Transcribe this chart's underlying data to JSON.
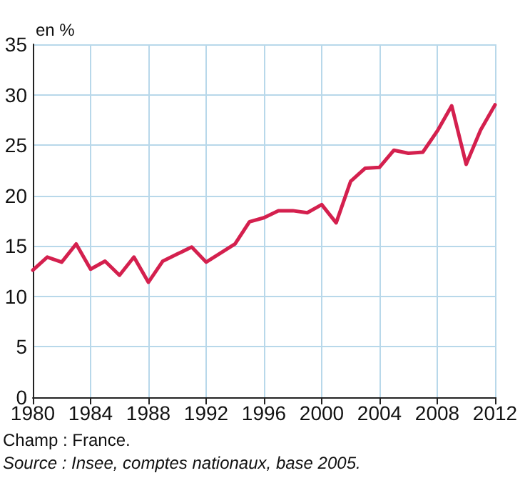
{
  "chart_data": {
    "type": "line",
    "ylabel": "en %",
    "x": [
      1980,
      1981,
      1982,
      1983,
      1984,
      1985,
      1986,
      1987,
      1988,
      1989,
      1990,
      1991,
      1992,
      1993,
      1994,
      1995,
      1996,
      1997,
      1998,
      1999,
      2000,
      2001,
      2002,
      2003,
      2004,
      2005,
      2006,
      2007,
      2008,
      2009,
      2010,
      2011,
      2012
    ],
    "series": [
      {
        "color": "#d4204e",
        "values": [
          12.6,
          13.9,
          13.4,
          15.2,
          12.7,
          13.5,
          12.1,
          13.9,
          11.4,
          13.5,
          14.2,
          14.9,
          13.4,
          14.3,
          15.2,
          17.4,
          17.8,
          18.5,
          18.5,
          18.3,
          19.1,
          17.3,
          21.4,
          22.7,
          22.8,
          24.5,
          24.2,
          24.3,
          26.4,
          28.9,
          23.1,
          26.5,
          29.0
        ]
      }
    ],
    "xlim": [
      1980,
      2012
    ],
    "xticks": [
      1980,
      1984,
      1988,
      1992,
      1996,
      2000,
      2004,
      2008,
      2012
    ],
    "ylim": [
      0,
      35
    ],
    "yticks": [
      0,
      5,
      10,
      15,
      20,
      25,
      30,
      35
    ],
    "grid": true,
    "marker": "none",
    "line_style": "solid",
    "annotations": [
      "Champ : France.",
      "Source : Insee, comptes nationaux, base 2005."
    ]
  }
}
